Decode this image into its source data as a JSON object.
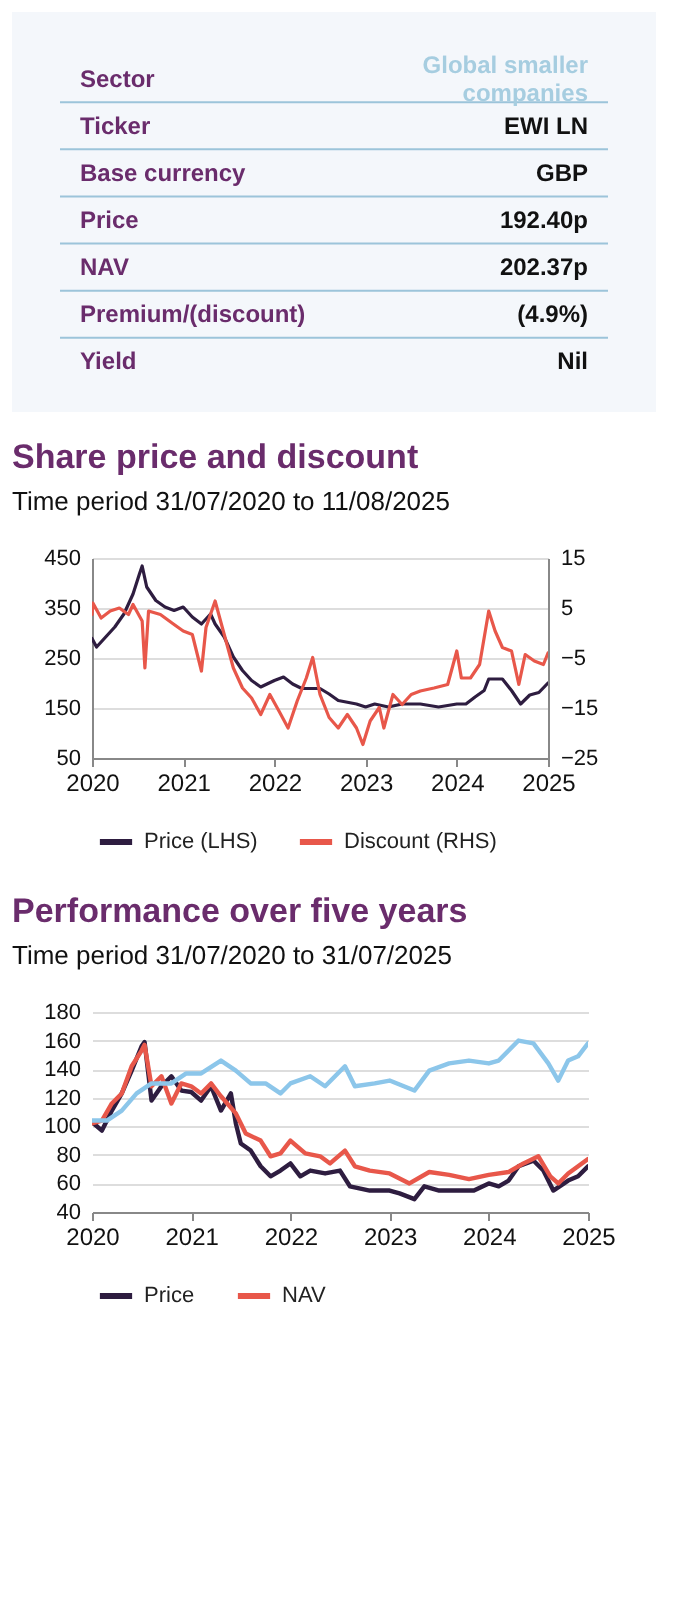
{
  "chart_data": [
    {
      "type": "other",
      "categories": [
        "Sector",
        "Ticker",
        "Base currency",
        "Price",
        "NAV",
        "Premium/(discount)",
        "Yield"
      ],
      "y2_categories": [
        "Global smaller companies",
        "EWI LN",
        "GBP",
        "192.40p",
        "202.37p",
        "(4.9%)",
        "Nil"
      ]
    },
    {
      "type": "line",
      "title": "Share price and discount",
      "subtitle": "Time period 31/07/2020 to 11/08/2025",
      "series": [
        {
          "name": "Price (LHS)",
          "color": "#2e1d40",
          "x": [
            2020.0,
            2020.05,
            2020.15,
            2020.25,
            2020.35,
            2020.45,
            2020.52,
            2020.55,
            2020.6,
            2020.7,
            2020.8,
            2020.9,
            2021.0,
            2021.1,
            2021.2,
            2021.3,
            2021.35,
            2021.45,
            2021.55,
            2021.65,
            2021.75,
            2021.85,
            2022.0,
            2022.1,
            2022.2,
            2022.3,
            2022.5,
            2022.6,
            2022.7,
            2022.9,
            2023.0,
            2023.1,
            2023.25,
            2023.4,
            2023.6,
            2023.8,
            2024.0,
            2024.1,
            2024.2,
            2024.3,
            2024.35,
            2024.5,
            2024.6,
            2024.7,
            2024.8,
            2024.9,
            2025.0
          ],
          "values": [
            289,
            272,
            292,
            312,
            338,
            378,
            418,
            434,
            392,
            365,
            352,
            345,
            352,
            332,
            318,
            338,
            318,
            292,
            252,
            225,
            205,
            192,
            205,
            212,
            198,
            189,
            189,
            178,
            165,
            158,
            152,
            158,
            152,
            158,
            158,
            152,
            158,
            158,
            172,
            185,
            208,
            208,
            185,
            158,
            176,
            181,
            200
          ]
        },
        {
          "name": "Discount (RHS)",
          "color": "#e8574a",
          "axis": "y2",
          "x": [
            2020.0,
            2020.01,
            2020.1,
            2020.2,
            2020.3,
            2020.4,
            2020.45,
            2020.55,
            2020.58,
            2020.62,
            2020.75,
            2020.9,
            2021.0,
            2021.1,
            2021.2,
            2021.25,
            2021.35,
            2021.45,
            2021.55,
            2021.65,
            2021.75,
            2021.85,
            2021.95,
            2022.05,
            2022.15,
            2022.25,
            2022.35,
            2022.42,
            2022.5,
            2022.6,
            2022.7,
            2022.8,
            2022.9,
            2022.97,
            2023.05,
            2023.15,
            2023.2,
            2023.3,
            2023.4,
            2023.5,
            2023.6,
            2023.75,
            2023.9,
            2024.0,
            2024.05,
            2024.15,
            2024.25,
            2024.35,
            2024.42,
            2024.5,
            2024.6,
            2024.68,
            2024.75,
            2024.85,
            2024.95,
            2025.0
          ],
          "values": [
            3.7,
            6,
            3,
            4.4,
            5,
            3.7,
            5.7,
            2.4,
            -7,
            4.4,
            3.7,
            1.7,
            0.4,
            -0.3,
            -7.6,
            1.1,
            6.4,
            -0.3,
            -7,
            -11,
            -13,
            -16.3,
            -12.3,
            -15.6,
            -19,
            -13.6,
            -9,
            -4.9,
            -12.3,
            -16.9,
            -19,
            -16.3,
            -19,
            -22.3,
            -17.6,
            -14.9,
            -19,
            -12.3,
            -14.3,
            -12.3,
            -11.6,
            -11,
            -10.3,
            -3.6,
            -9,
            -9,
            -6.3,
            4.4,
            0.4,
            -2.9,
            -3.6,
            -10.3,
            -4.3,
            -5.6,
            -6.3,
            -4
          ]
        }
      ],
      "xlim": [
        2020,
        2025
      ],
      "xticks": [
        2020,
        2021,
        2022,
        2023,
        2024,
        2025
      ],
      "ylim": [
        50,
        450
      ],
      "yticks": [
        50,
        150,
        250,
        350,
        450
      ],
      "y2lim": [
        -25,
        15
      ],
      "y2ticks": [
        -25,
        -15,
        -5,
        5,
        15
      ],
      "grid": "y",
      "legend": "bottom"
    },
    {
      "type": "line",
      "title": "Performance over five years",
      "subtitle": "Time period 31/07/2020 to 31/07/2025",
      "series": [
        {
          "name": "Price",
          "color": "#2e1d40",
          "x": [
            2020.0,
            2020.1,
            2020.2,
            2020.3,
            2020.4,
            2020.5,
            2020.53,
            2020.6,
            2020.7,
            2020.8,
            2020.9,
            2021.0,
            2021.1,
            2021.2,
            2021.3,
            2021.4,
            2021.45,
            2021.5,
            2021.6,
            2021.7,
            2021.8,
            2021.9,
            2022.0,
            2022.1,
            2022.2,
            2022.35,
            2022.5,
            2022.6,
            2022.8,
            2023.0,
            2023.1,
            2023.25,
            2023.35,
            2023.5,
            2023.7,
            2023.85,
            2024.0,
            2024.1,
            2024.2,
            2024.3,
            2024.45,
            2024.55,
            2024.65,
            2024.8,
            2024.9,
            2025.0
          ],
          "values": [
            103,
            97,
            111,
            123,
            139,
            156,
            159,
            118,
            128,
            135,
            125,
            124,
            118,
            128,
            111,
            123,
            102,
            88,
            83,
            72,
            65,
            69,
            74,
            65,
            69,
            67,
            69,
            58,
            55,
            55,
            53,
            49,
            58,
            55,
            55,
            55,
            60,
            58,
            62,
            72,
            76,
            69,
            55,
            62,
            65,
            72
          ]
        },
        {
          "name": "NAV",
          "color": "#e8574a",
          "x": [
            2020.0,
            2020.1,
            2020.2,
            2020.3,
            2020.4,
            2020.5,
            2020.53,
            2020.6,
            2020.7,
            2020.8,
            2020.9,
            2021.0,
            2021.1,
            2021.2,
            2021.3,
            2021.45,
            2021.55,
            2021.7,
            2021.8,
            2021.9,
            2022.0,
            2022.15,
            2022.3,
            2022.4,
            2022.55,
            2022.65,
            2022.8,
            2023.0,
            2023.2,
            2023.4,
            2023.6,
            2023.8,
            2024.0,
            2024.2,
            2024.35,
            2024.5,
            2024.62,
            2024.7,
            2024.8,
            2025.0
          ],
          "values": [
            102,
            104,
            116,
            123,
            142,
            153,
            157,
            128,
            135,
            116,
            130,
            128,
            123,
            130,
            121,
            109,
            95,
            90,
            79,
            81,
            90,
            81,
            79,
            74,
            83,
            72,
            69,
            67,
            60,
            68,
            66,
            63,
            66,
            68,
            74,
            79,
            65,
            60,
            67,
            77
          ]
        },
        {
          "name": null,
          "color": "#8cc6ea",
          "x": [
            2020.0,
            2020.15,
            2020.3,
            2020.45,
            2020.6,
            2020.8,
            2020.95,
            2021.1,
            2021.3,
            2021.45,
            2021.6,
            2021.75,
            2021.9,
            2022.0,
            2022.2,
            2022.35,
            2022.55,
            2022.65,
            2022.85,
            2023.0,
            2023.25,
            2023.4,
            2023.6,
            2023.8,
            2024.0,
            2024.1,
            2024.3,
            2024.45,
            2024.6,
            2024.7,
            2024.8,
            2024.9,
            2025.0
          ],
          "values": [
            104,
            104,
            111,
            123,
            130,
            130,
            137,
            137,
            146,
            139,
            130,
            130,
            123,
            130,
            135,
            128,
            142,
            128,
            130,
            132,
            125,
            139,
            144,
            146,
            144,
            146,
            160,
            158,
            144,
            132,
            146,
            149,
            158
          ]
        }
      ],
      "xlim": [
        2020,
        2025
      ],
      "xticks": [
        2020,
        2021,
        2022,
        2023,
        2024,
        2025
      ],
      "ylim": [
        40,
        180
      ],
      "yticks": [
        40,
        60,
        80,
        100,
        120,
        140,
        160,
        180
      ],
      "grid": "y",
      "legend": "bottom"
    }
  ]
}
